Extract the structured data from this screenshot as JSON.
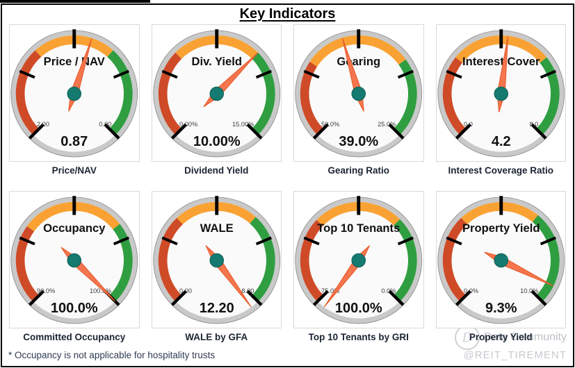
{
  "header": {
    "title": "Key Indicators"
  },
  "footnote": "* Occupancy is not applicable for hospitality trusts",
  "watermark": {
    "brand": "Data Community",
    "handle": "@REIT_TIREMENT"
  },
  "colors": {
    "red": "#cf4b27",
    "orange": "#f9a233",
    "green": "#2f9e41",
    "ring": "#c9c9c9",
    "ring_edge": "#8a8a8a",
    "face": "#fafafa",
    "face_edge": "#c6c6c6",
    "tick": "#000000",
    "needle": "#f4764e",
    "needle_edge": "#e85c2c",
    "hub": "#157a70",
    "hub_edge": "#0e5e55",
    "gauge_text": "#111111",
    "scale_label": "#3c3c3c"
  },
  "chart_data": [
    {
      "type": "gauge",
      "title": "Price / NAV",
      "caption": "Price/NAV",
      "value": 0.87,
      "value_label": "0.87",
      "left_value": 2.0,
      "left_label": "2.00",
      "right_value": 0.0,
      "right_label": "0.00",
      "band_stops": [
        0.345,
        0.655
      ]
    },
    {
      "type": "gauge",
      "title": "Div. Yield",
      "caption": "Dividend Yield",
      "value": 10.0,
      "value_label": "10.00%",
      "left_value": 0.0,
      "left_label": "0.00%",
      "right_value": 15.0,
      "right_label": "15.00%",
      "band_stops": [
        0.333,
        0.667
      ]
    },
    {
      "type": "gauge",
      "title": "Gearing",
      "caption": "Gearing Ratio",
      "value": 39.0,
      "value_label": "39.0%",
      "left_value": 50.0,
      "left_label": "50.0%",
      "right_value": 25.0,
      "right_label": "25.0%",
      "band_stops": [
        0.29,
        0.7
      ]
    },
    {
      "type": "gauge",
      "title": "Interest Cover",
      "caption": "Interest Coverage Ratio",
      "value": 4.2,
      "value_label": "4.2",
      "left_value": 0.0,
      "left_label": "0.0",
      "right_value": 8.0,
      "right_label": "8.0",
      "band_stops": [
        0.31,
        0.69
      ]
    },
    {
      "type": "gauge",
      "title": "Occupancy",
      "caption": "Committed Occupancy",
      "value": 100.0,
      "value_label": "100.0%",
      "left_value": 90.0,
      "left_label": "90.0%",
      "right_value": 100.0,
      "right_label": "100.0%",
      "band_stops": [
        0.3,
        0.69
      ]
    },
    {
      "type": "gauge",
      "title": "WALE",
      "caption": "WALE by GFA",
      "value": 12.2,
      "value_label": "12.20",
      "left_value": 0.0,
      "left_label": "0.00",
      "right_value": 8.0,
      "right_label": "8.00",
      "band_stops": [
        0.34,
        0.655
      ]
    },
    {
      "type": "gauge",
      "title": "Top 10 Tenants",
      "caption": "Top 10 Tenants by GRI",
      "value": 100.0,
      "value_label": "100.0%",
      "left_value": 75.0,
      "left_label": "75.0%",
      "right_value": 0.0,
      "right_label": "0.0%",
      "band_stops": [
        0.33,
        0.667
      ]
    },
    {
      "type": "gauge",
      "title": "Property Yield",
      "caption": "Property Yield",
      "value": 9.3,
      "value_label": "9.3%",
      "left_value": 0.0,
      "left_label": "0.0%",
      "right_value": 10.0,
      "right_label": "10.0%",
      "band_stops": [
        0.34,
        0.645
      ]
    }
  ]
}
